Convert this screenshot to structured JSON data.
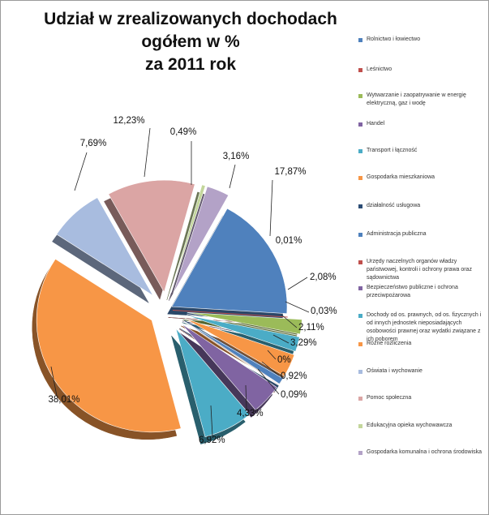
{
  "chart_data": {
    "type": "pie",
    "title": "Udział w zrealizowanych dochodach ogółem w %\nza 2011 rok",
    "exploded": true,
    "three_d": true,
    "legend_position": "right",
    "slices": [
      {
        "label": "Rolnictwo i łowiectwo",
        "value": 17.87,
        "display": "17,87%",
        "color": "#4f81bd"
      },
      {
        "label": "Leśnictwo",
        "value": 0.01,
        "display": "0,01%",
        "color": "#c0504d"
      },
      {
        "label": "Wytwarzanie i zaopatrywanie w energię elektryczną, gaz i wodę",
        "value": 2.08,
        "display": "2,08%",
        "color": "#9bbb59"
      },
      {
        "label": "Handel",
        "value": 0.03,
        "display": "0,03%",
        "color": "#8064a2"
      },
      {
        "label": "Transport i łączność",
        "value": 2.11,
        "display": "2,11%",
        "color": "#4bacc6"
      },
      {
        "label": "Gospodarka mieszkaniowa",
        "value": 3.29,
        "display": "3,29%",
        "color": "#f79646"
      },
      {
        "label": "działalność usługowa",
        "value": 0,
        "display": "0%",
        "color": "#2c4d75"
      },
      {
        "label": "Administracja publiczna",
        "value": 0.92,
        "display": "0,92%",
        "color": "#4f81bd"
      },
      {
        "label": "Urzędy naczelnych organów władzy państwowej, kontroli i ochrony prawa oraz sądownictwa",
        "value": 0.09,
        "display": "0,09%",
        "color": "#c0504d"
      },
      {
        "label": "Bezpieczeństwo publiczne i ochrona przeciwpożarowa",
        "value": 4.33,
        "display": "4,33%",
        "color": "#8064a2"
      },
      {
        "label": "Dochody od os. prawnych, od os. fizycznych i od innych jednostek nieposiadających osobowości prawnej oraz wydatki związane z ich poborem",
        "value": 6.92,
        "display": "6,92%",
        "color": "#4bacc6"
      },
      {
        "label": "Różne rozliczenia",
        "value": 38.01,
        "display": "38,01%",
        "color": "#f79646"
      },
      {
        "label": "Oświata i wychowanie",
        "value": 7.69,
        "display": "7,69%",
        "color": "#a8bcdf"
      },
      {
        "label": "Pomoc społeczna",
        "value": 12.23,
        "display": "12,23%",
        "color": "#dba5a4"
      },
      {
        "label": "Edukacyjna opieka wychowawcza",
        "value": 0.49,
        "display": "0,49%",
        "color": "#c3d69b"
      },
      {
        "label": "Gospodarka komunalna i ochrona środowiska",
        "value": 3.16,
        "display": "3,16%",
        "color": "#b3a2c7"
      }
    ]
  }
}
